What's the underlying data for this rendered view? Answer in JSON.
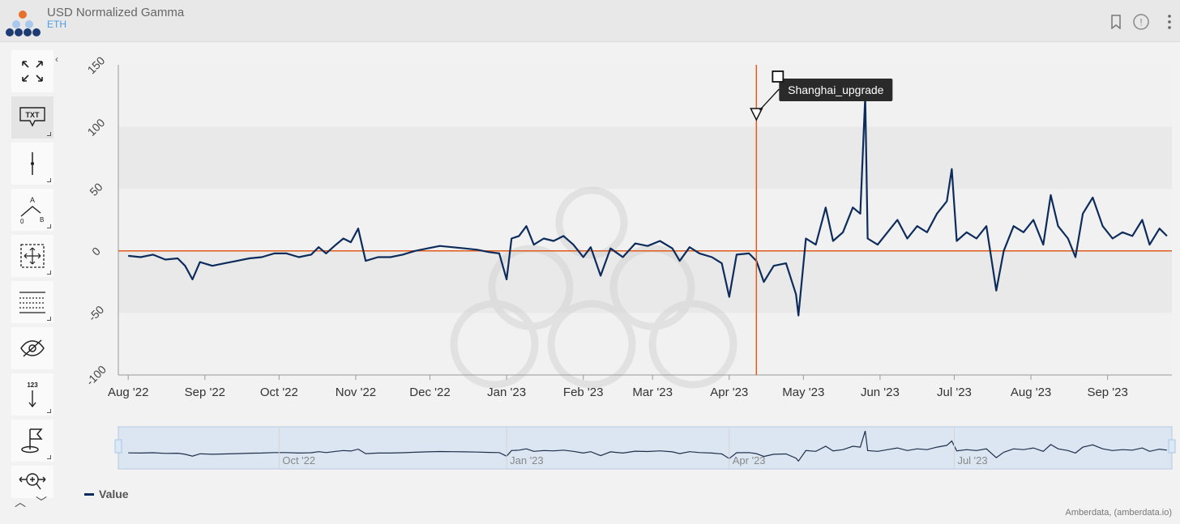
{
  "header": {
    "title": "USD Normalized Gamma",
    "subtitle": "ETH"
  },
  "legend": {
    "label": "Value"
  },
  "credits": "Amberdata, (amberdata.io)",
  "colors": {
    "series": "#0d2c5c",
    "marker": "#e05a1a",
    "navigator_fill": "#dce6f2"
  },
  "toolbar": {
    "buttons": [
      "fullscreen-icon",
      "text-annotation-icon",
      "vertical-line-icon",
      "measure-icon",
      "crosshair-zoom-icon",
      "horizontal-grid-icon",
      "hide-icon",
      "label-value-icon",
      "flag-icon",
      "pan-zoom-icon"
    ],
    "txt_label": "TXT",
    "label_123": "123"
  },
  "annotation": {
    "label": "Shanghai_upgrade",
    "date": "2023-04-12"
  },
  "chart_data": {
    "type": "line",
    "title": "USD Normalized Gamma",
    "subtitle": "ETH",
    "xlabel": "",
    "ylabel": "",
    "ylim": [
      -100,
      150
    ],
    "yticks": [
      -100,
      -50,
      0,
      50,
      100,
      150
    ],
    "xlim": [
      "2022-07-28",
      "2023-09-27"
    ],
    "xticks": [
      {
        "date": "2022-08-01",
        "label": "Aug '22"
      },
      {
        "date": "2022-09-01",
        "label": "Sep '22"
      },
      {
        "date": "2022-10-01",
        "label": "Oct '22"
      },
      {
        "date": "2022-11-01",
        "label": "Nov '22"
      },
      {
        "date": "2022-12-01",
        "label": "Dec '22"
      },
      {
        "date": "2023-01-01",
        "label": "Jan '23"
      },
      {
        "date": "2023-02-01",
        "label": "Feb '23"
      },
      {
        "date": "2023-03-01",
        "label": "Mar '23"
      },
      {
        "date": "2023-04-01",
        "label": "Apr '23"
      },
      {
        "date": "2023-05-01",
        "label": "May '23"
      },
      {
        "date": "2023-06-01",
        "label": "Jun '23"
      },
      {
        "date": "2023-07-01",
        "label": "Jul '23"
      },
      {
        "date": "2023-08-01",
        "label": "Aug '23"
      },
      {
        "date": "2023-09-01",
        "label": "Sep '23"
      }
    ],
    "navigator_labels": [
      {
        "date": "2022-10-01",
        "label": "Oct '22"
      },
      {
        "date": "2023-01-01",
        "label": "Jan '23"
      },
      {
        "date": "2023-04-01",
        "label": "Apr '23"
      },
      {
        "date": "2023-07-01",
        "label": "Jul '23"
      }
    ],
    "grid": true,
    "legend_position": "bottom-left",
    "series": [
      {
        "name": "Value",
        "points": [
          [
            "2022-08-01",
            -4
          ],
          [
            "2022-08-06",
            -5
          ],
          [
            "2022-08-11",
            -3
          ],
          [
            "2022-08-16",
            -7
          ],
          [
            "2022-08-21",
            -6
          ],
          [
            "2022-08-24",
            -12
          ],
          [
            "2022-08-27",
            -23
          ],
          [
            "2022-08-30",
            -9
          ],
          [
            "2022-09-04",
            -12
          ],
          [
            "2022-09-09",
            -10
          ],
          [
            "2022-09-14",
            -8
          ],
          [
            "2022-09-19",
            -6
          ],
          [
            "2022-09-24",
            -5
          ],
          [
            "2022-09-29",
            -2
          ],
          [
            "2022-10-04",
            -2
          ],
          [
            "2022-10-09",
            -5
          ],
          [
            "2022-10-14",
            -3
          ],
          [
            "2022-10-17",
            3
          ],
          [
            "2022-10-20",
            -2
          ],
          [
            "2022-10-24",
            5
          ],
          [
            "2022-10-27",
            10
          ],
          [
            "2022-10-30",
            7
          ],
          [
            "2022-11-02",
            18
          ],
          [
            "2022-11-05",
            -8
          ],
          [
            "2022-11-10",
            -5
          ],
          [
            "2022-11-15",
            -5
          ],
          [
            "2022-11-20",
            -3
          ],
          [
            "2022-11-25",
            0
          ],
          [
            "2022-11-30",
            2
          ],
          [
            "2022-12-05",
            4
          ],
          [
            "2022-12-10",
            3
          ],
          [
            "2022-12-15",
            2
          ],
          [
            "2022-12-20",
            1
          ],
          [
            "2022-12-25",
            -1
          ],
          [
            "2022-12-29",
            -2
          ],
          [
            "2023-01-01",
            -23
          ],
          [
            "2023-01-03",
            10
          ],
          [
            "2023-01-06",
            12
          ],
          [
            "2023-01-09",
            20
          ],
          [
            "2023-01-12",
            5
          ],
          [
            "2023-01-16",
            10
          ],
          [
            "2023-01-20",
            8
          ],
          [
            "2023-01-24",
            12
          ],
          [
            "2023-01-28",
            5
          ],
          [
            "2023-02-01",
            -5
          ],
          [
            "2023-02-04",
            3
          ],
          [
            "2023-02-08",
            -20
          ],
          [
            "2023-02-12",
            2
          ],
          [
            "2023-02-17",
            -5
          ],
          [
            "2023-02-22",
            6
          ],
          [
            "2023-02-27",
            4
          ],
          [
            "2023-03-04",
            8
          ],
          [
            "2023-03-09",
            2
          ],
          [
            "2023-03-12",
            -8
          ],
          [
            "2023-03-16",
            3
          ],
          [
            "2023-03-20",
            -2
          ],
          [
            "2023-03-25",
            -5
          ],
          [
            "2023-03-29",
            -10
          ],
          [
            "2023-04-01",
            -37
          ],
          [
            "2023-04-04",
            -3
          ],
          [
            "2023-04-09",
            -2
          ],
          [
            "2023-04-12",
            -8
          ],
          [
            "2023-04-15",
            -25
          ],
          [
            "2023-04-19",
            -12
          ],
          [
            "2023-04-24",
            -10
          ],
          [
            "2023-04-28",
            -35
          ],
          [
            "2023-04-29",
            -52
          ],
          [
            "2023-05-02",
            10
          ],
          [
            "2023-05-06",
            5
          ],
          [
            "2023-05-10",
            35
          ],
          [
            "2023-05-13",
            8
          ],
          [
            "2023-05-17",
            15
          ],
          [
            "2023-05-21",
            35
          ],
          [
            "2023-05-24",
            30
          ],
          [
            "2023-05-26",
            125
          ],
          [
            "2023-05-27",
            10
          ],
          [
            "2023-05-31",
            5
          ],
          [
            "2023-06-04",
            15
          ],
          [
            "2023-06-08",
            25
          ],
          [
            "2023-06-12",
            10
          ],
          [
            "2023-06-16",
            20
          ],
          [
            "2023-06-20",
            15
          ],
          [
            "2023-06-24",
            30
          ],
          [
            "2023-06-28",
            40
          ],
          [
            "2023-06-30",
            66
          ],
          [
            "2023-07-02",
            8
          ],
          [
            "2023-07-06",
            15
          ],
          [
            "2023-07-10",
            10
          ],
          [
            "2023-07-14",
            20
          ],
          [
            "2023-07-18",
            -32
          ],
          [
            "2023-07-21",
            0
          ],
          [
            "2023-07-25",
            20
          ],
          [
            "2023-07-29",
            15
          ],
          [
            "2023-08-02",
            25
          ],
          [
            "2023-08-06",
            5
          ],
          [
            "2023-08-09",
            45
          ],
          [
            "2023-08-12",
            20
          ],
          [
            "2023-08-16",
            10
          ],
          [
            "2023-08-19",
            -5
          ],
          [
            "2023-08-22",
            30
          ],
          [
            "2023-08-26",
            43
          ],
          [
            "2023-08-30",
            20
          ],
          [
            "2023-09-03",
            10
          ],
          [
            "2023-09-07",
            15
          ],
          [
            "2023-09-11",
            12
          ],
          [
            "2023-09-15",
            25
          ],
          [
            "2023-09-18",
            5
          ],
          [
            "2023-09-22",
            18
          ],
          [
            "2023-09-25",
            12
          ]
        ]
      }
    ]
  }
}
